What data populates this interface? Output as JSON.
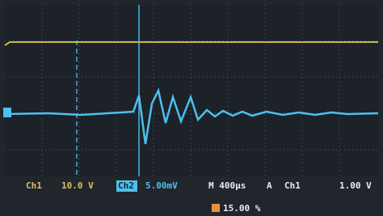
{
  "status": {
    "ch1_label": "Ch1",
    "ch1_scale": "10.0 V",
    "ch2_label": "Ch2",
    "ch2_scale": "5.00mV",
    "timebase": "M 400µs",
    "trigger_mode": "A",
    "trigger_source": "Ch1",
    "trigger_level": "1.00 V",
    "trigger_position": "15.00 %"
  }
}
